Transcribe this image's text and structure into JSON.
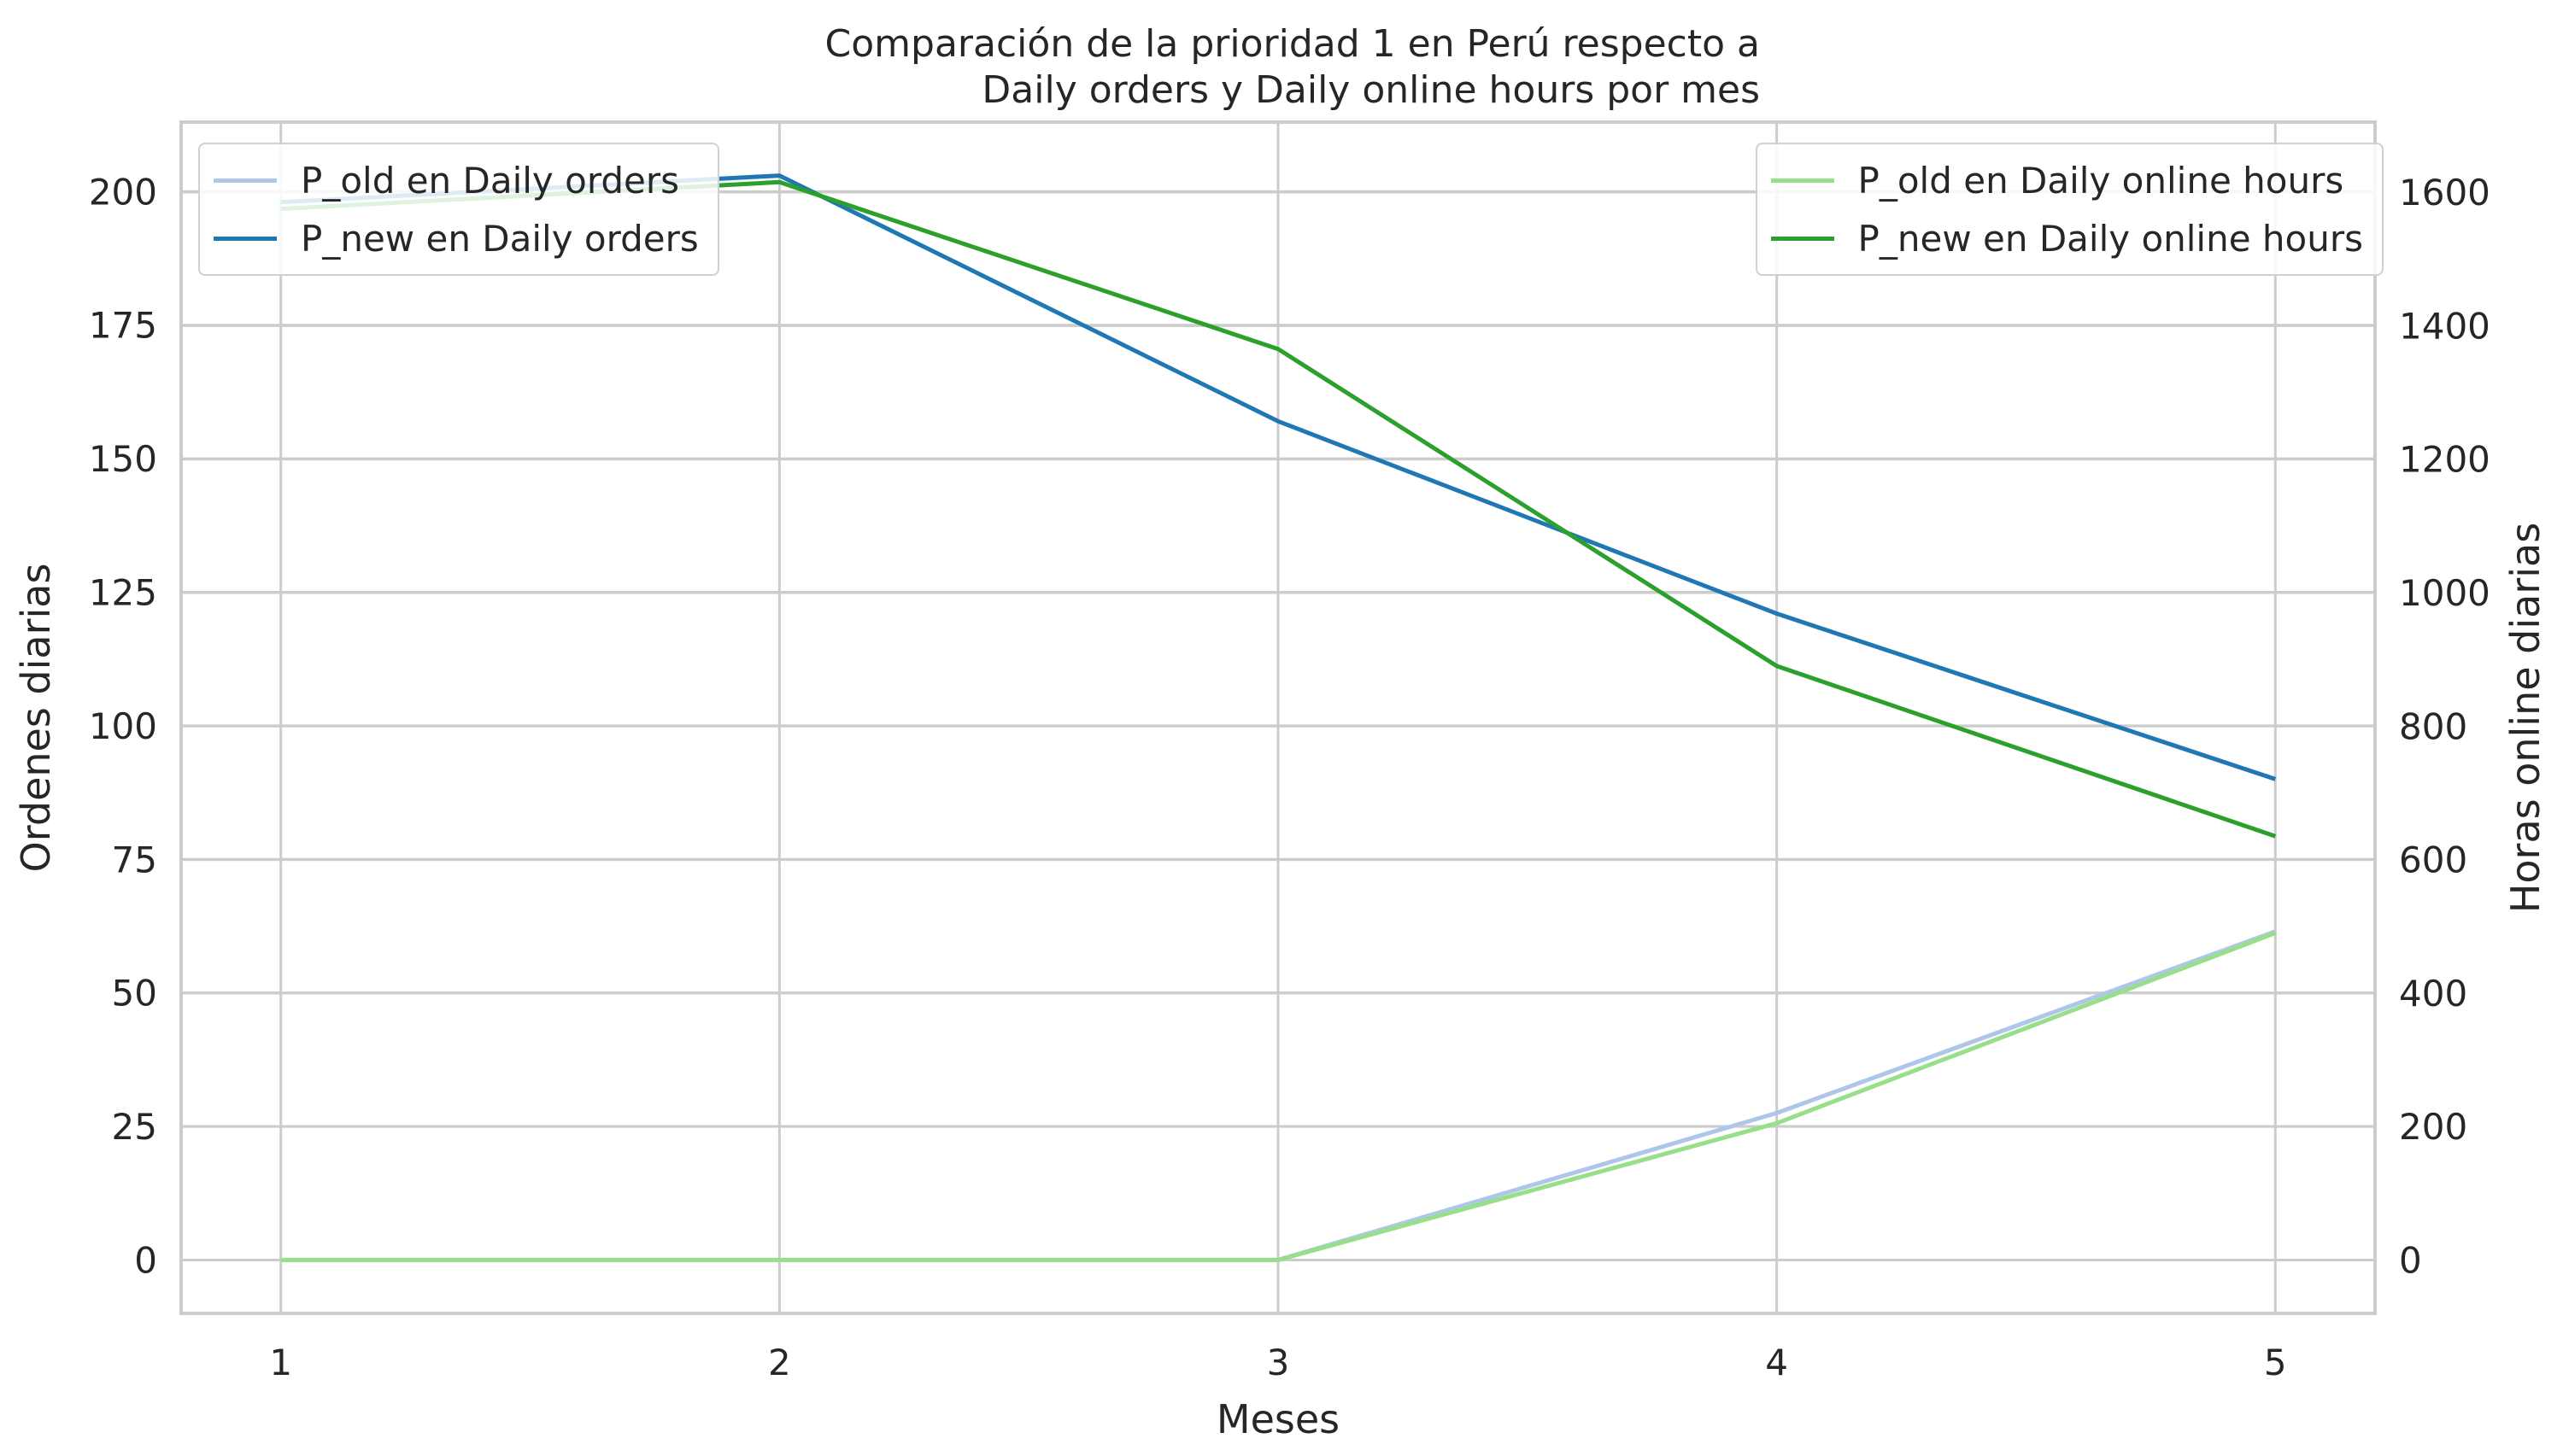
{
  "title": {
    "line1": "Comparación de la prioridad 1 en Perú respecto a",
    "line2": "Daily orders y Daily online hours por mes"
  },
  "chart_data": {
    "type": "line",
    "title": "Comparación de la prioridad 1 en Perú respecto a Daily orders y Daily online hours por mes",
    "xlabel": "Meses",
    "ylabel_left": "Ordenes diarias",
    "ylabel_right": "Horas online diarias",
    "x": [
      1,
      2,
      3,
      4,
      5
    ],
    "x_ticks": [
      "1",
      "2",
      "3",
      "4",
      "5"
    ],
    "xlim": [
      0.8,
      5.2
    ],
    "ylim_left": [
      -10,
      213
    ],
    "ylim_right": [
      -80,
      1705
    ],
    "yticks_left": [
      "0",
      "25",
      "50",
      "75",
      "100",
      "125",
      "150",
      "175",
      "200"
    ],
    "yticks_right": [
      "0",
      "200",
      "400",
      "600",
      "800",
      "1000",
      "1200",
      "1400",
      "1600"
    ],
    "grid": true,
    "series": [
      {
        "name": "P_old en Daily orders",
        "axis": "left",
        "color": "#aec7e8",
        "values": [
          0,
          0,
          0,
          27.5,
          61.5
        ]
      },
      {
        "name": "P_new en Daily orders",
        "axis": "left",
        "color": "#1f77b4",
        "values": [
          198,
          203,
          157,
          121,
          90
        ]
      },
      {
        "name": "P_old en Daily online hours",
        "axis": "right",
        "color": "#98df8a",
        "values": [
          0,
          0,
          0,
          205,
          490
        ]
      },
      {
        "name": "P_new en Daily online hours",
        "axis": "right",
        "color": "#2ca02c",
        "values": [
          1575,
          1615,
          1365,
          890,
          635
        ]
      }
    ],
    "legend_left": {
      "placement": "upper-left",
      "series": [
        0,
        1
      ]
    },
    "legend_right": {
      "placement": "upper-right",
      "series": [
        2,
        3
      ]
    }
  }
}
